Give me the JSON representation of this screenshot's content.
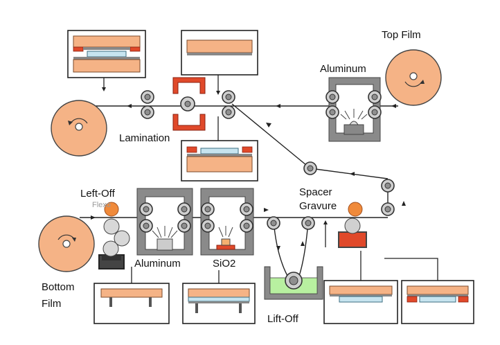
{
  "labels": {
    "top_film": "Top Film",
    "aluminum_top": "Aluminum",
    "lamination": "Lamination",
    "left_off": "Left-Off",
    "flexo": "Flexo",
    "spacer_gravure": "Spacer\nGravure",
    "aluminum_bottom": "Aluminum",
    "sio2": "SiO2",
    "bottom_film": "Bottom\nFilm",
    "lift_off": "Lift-Off"
  },
  "colors": {
    "film": "#f5b386",
    "dielectric": "#c7e4ef",
    "electrode": "#e0492a",
    "chamber": "#8a8a8a",
    "roller": "#cfcfcf",
    "bath": "#b8f0a0",
    "ink": "#f08a3a"
  }
}
